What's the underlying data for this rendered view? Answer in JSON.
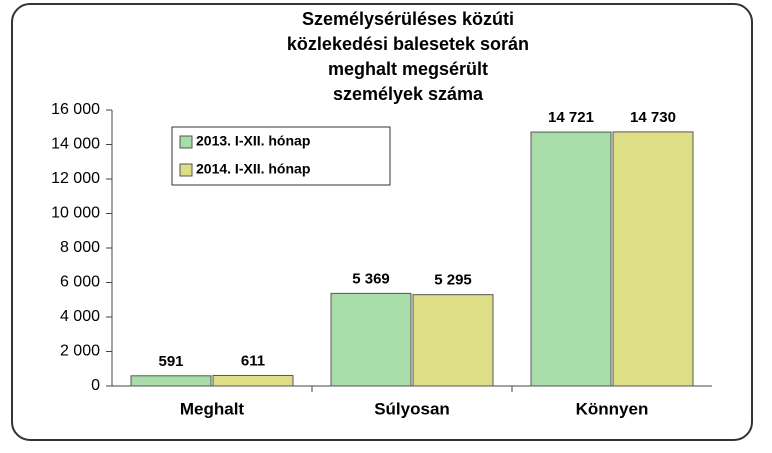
{
  "chart_data": {
    "type": "bar",
    "title": [
      "Személysérüléses közúti",
      "közlekedési balesetek során",
      "meghalt megsérült",
      "személyek száma"
    ],
    "categories": [
      "Meghalt",
      "Súlyosan",
      "Könnyen"
    ],
    "series": [
      {
        "name": "2013. I-XII. hónap",
        "color": "#a8dca8",
        "values": [
          591,
          5369,
          14721
        ],
        "value_labels": [
          "591",
          "5 369",
          "14 721"
        ]
      },
      {
        "name": "2014. I-XII. hónap",
        "color": "#dede86",
        "values": [
          611,
          5295,
          14730
        ],
        "value_labels": [
          "611",
          "5 295",
          "14 730"
        ]
      }
    ],
    "ylim": [
      0,
      16000
    ],
    "yticks": [
      {
        "value": 0,
        "label": "0"
      },
      {
        "value": 2000,
        "label": "2 000"
      },
      {
        "value": 4000,
        "label": "4 000"
      },
      {
        "value": 6000,
        "label": "6 000"
      },
      {
        "value": 8000,
        "label": "8 000"
      },
      {
        "value": 10000,
        "label": "10 000"
      },
      {
        "value": 12000,
        "label": "12 000"
      },
      {
        "value": 14000,
        "label": "14 000"
      },
      {
        "value": 16000,
        "label": "16 000"
      }
    ],
    "grid": false,
    "legend": "top-left"
  }
}
